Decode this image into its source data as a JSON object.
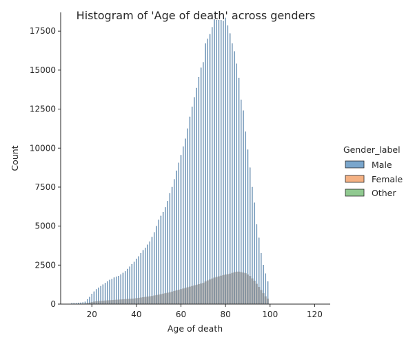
{
  "chart_data": {
    "type": "bar",
    "title": "Histogram of 'Age of death' across genders",
    "xlabel": "Age of death",
    "ylabel": "Count",
    "xlim": [
      6,
      127
    ],
    "ylim": [
      0,
      18700
    ],
    "xticks": [
      20,
      40,
      60,
      80,
      100,
      120
    ],
    "yticks": [
      0,
      2500,
      5000,
      7500,
      10000,
      12500,
      15000,
      17500
    ],
    "grid": false,
    "legend": {
      "title": "Gender_label",
      "placement": "right"
    },
    "bin_width": 1,
    "x": [
      11,
      12,
      13,
      14,
      15,
      16,
      17,
      18,
      19,
      20,
      21,
      22,
      23,
      24,
      25,
      26,
      27,
      28,
      29,
      30,
      31,
      32,
      33,
      34,
      35,
      36,
      37,
      38,
      39,
      40,
      41,
      42,
      43,
      44,
      45,
      46,
      47,
      48,
      49,
      50,
      51,
      52,
      53,
      54,
      55,
      56,
      57,
      58,
      59,
      60,
      61,
      62,
      63,
      64,
      65,
      66,
      67,
      68,
      69,
      70,
      71,
      72,
      73,
      74,
      75,
      76,
      77,
      78,
      79,
      80,
      81,
      82,
      83,
      84,
      85,
      86,
      87,
      88,
      89,
      90,
      91,
      92,
      93,
      94,
      95,
      96,
      97,
      98,
      99
    ],
    "series": [
      {
        "name": "Male",
        "color": "#7aa6cc",
        "values": [
          60,
          60,
          60,
          80,
          90,
          110,
          150,
          300,
          450,
          650,
          800,
          950,
          1050,
          1150,
          1250,
          1350,
          1450,
          1550,
          1600,
          1700,
          1750,
          1800,
          1900,
          2000,
          2100,
          2250,
          2400,
          2550,
          2700,
          2900,
          3050,
          3250,
          3450,
          3600,
          3800,
          4000,
          4300,
          4600,
          5000,
          5400,
          5650,
          5900,
          6200,
          6600,
          7100,
          7500,
          8000,
          8550,
          9050,
          9550,
          10100,
          10600,
          11250,
          12000,
          12650,
          13250,
          13850,
          14550,
          15150,
          15500,
          16700,
          17000,
          17300,
          17750,
          18250,
          18200,
          18200,
          18200,
          18150,
          18350,
          17850,
          17350,
          16700,
          16200,
          15400,
          14500,
          13100,
          12400,
          11050,
          9900,
          8750,
          7500,
          6500,
          5100,
          4250,
          3250,
          2500,
          1950,
          1450
        ]
      },
      {
        "name": "Female",
        "color": "#f4b183",
        "values": [
          0,
          0,
          0,
          0,
          0,
          0,
          0,
          0,
          0,
          0,
          0,
          0,
          0,
          0,
          0,
          0,
          0,
          0,
          0,
          0,
          0,
          0,
          0,
          0,
          0,
          0,
          0,
          0,
          0,
          0,
          0,
          0,
          0,
          0,
          0,
          0,
          0,
          0,
          0,
          0,
          0,
          0,
          0,
          0,
          0,
          0,
          0,
          0,
          0,
          0,
          0,
          0,
          0,
          0,
          0,
          0,
          0,
          0,
          0,
          0,
          0,
          0,
          0,
          0,
          0,
          0,
          0,
          0,
          0,
          0,
          0,
          0,
          0,
          0,
          0,
          0,
          0,
          0,
          0,
          0,
          0,
          0,
          0,
          0,
          0,
          0,
          0,
          0,
          0
        ]
      },
      {
        "name": "Other",
        "color": "#90c990",
        "values": [
          0,
          0,
          0,
          0,
          0,
          0,
          0,
          0,
          0,
          0,
          0,
          0,
          0,
          0,
          0,
          0,
          0,
          0,
          0,
          0,
          0,
          0,
          0,
          0,
          0,
          0,
          0,
          0,
          0,
          0,
          0,
          0,
          0,
          0,
          0,
          0,
          0,
          0,
          0,
          0,
          0,
          0,
          0,
          0,
          0,
          0,
          0,
          0,
          0,
          0,
          0,
          0,
          0,
          0,
          0,
          0,
          0,
          0,
          0,
          0,
          0,
          0,
          0,
          0,
          0,
          0,
          0,
          0,
          0,
          0,
          0,
          0,
          0,
          0,
          0,
          0,
          0,
          0,
          0,
          0,
          0,
          0,
          0,
          0,
          0,
          0,
          0,
          0,
          0
        ]
      }
    ],
    "overlay": {
      "color": "#808080",
      "values": [
        10,
        10,
        10,
        15,
        15,
        20,
        30,
        60,
        90,
        130,
        160,
        180,
        200,
        210,
        220,
        230,
        240,
        250,
        260,
        270,
        280,
        290,
        300,
        310,
        320,
        330,
        340,
        350,
        360,
        380,
        400,
        420,
        440,
        460,
        480,
        500,
        520,
        550,
        580,
        610,
        640,
        670,
        700,
        730,
        760,
        800,
        840,
        880,
        920,
        960,
        1000,
        1040,
        1080,
        1120,
        1160,
        1200,
        1240,
        1280,
        1320,
        1360,
        1450,
        1520,
        1580,
        1640,
        1700,
        1740,
        1780,
        1820,
        1860,
        1900,
        1920,
        1950,
        2000,
        2050,
        2080,
        2080,
        2050,
        2020,
        1980,
        1900,
        1800,
        1650,
        1500,
        1300,
        1100,
        900,
        700,
        500,
        350
      ]
    }
  }
}
